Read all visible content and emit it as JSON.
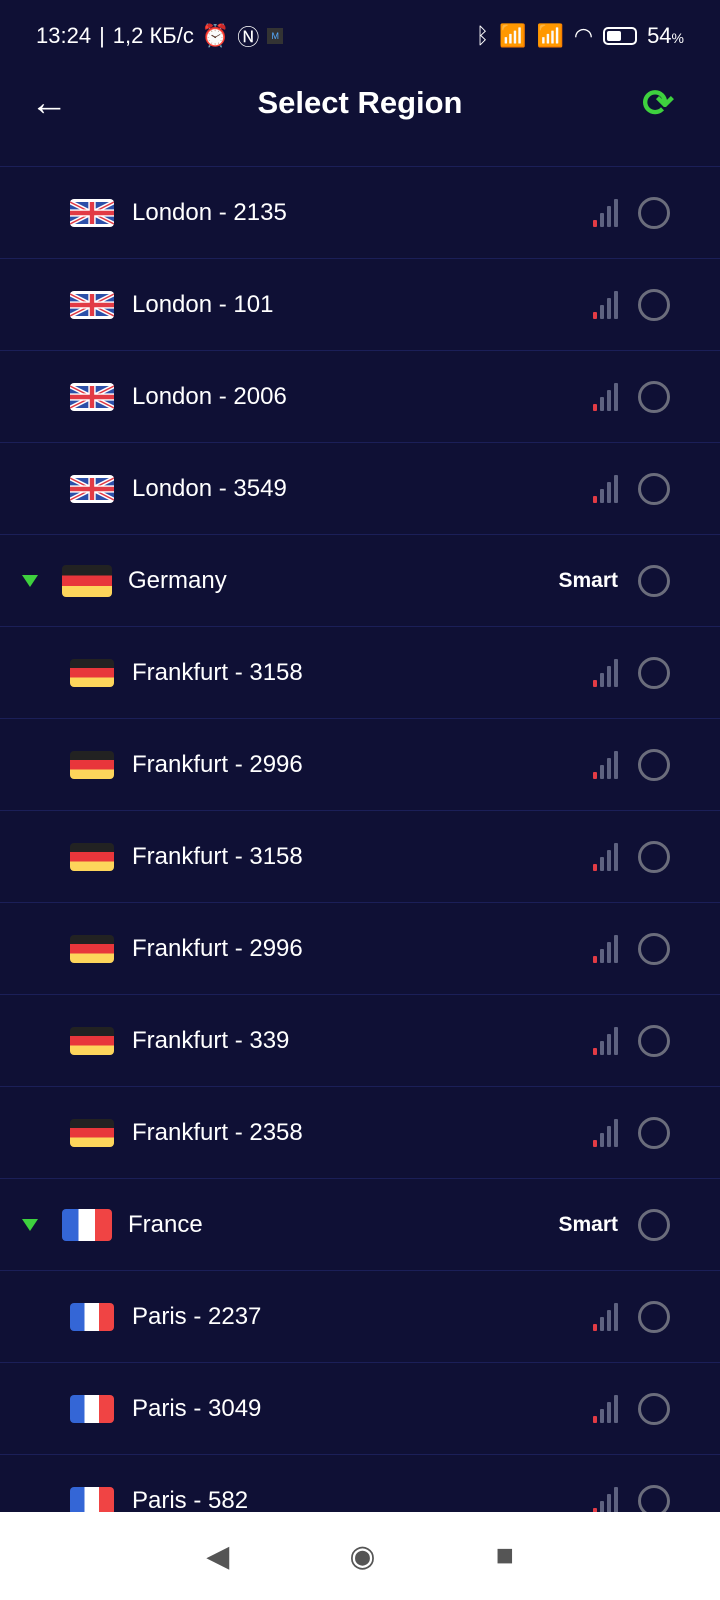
{
  "status": {
    "time": "13:24",
    "speed": "1,2 КБ/с",
    "battery": "54",
    "battery_unit": "%"
  },
  "header": {
    "title": "Select Region",
    "back_icon": "arrow-left-icon",
    "refresh_icon": "refresh-icon",
    "accent": "#3ed13e"
  },
  "smart_label": "Smart",
  "rows": [
    {
      "type": "city",
      "flag": "gb",
      "name": "London - 2135"
    },
    {
      "type": "city",
      "flag": "gb",
      "name": "London - 101"
    },
    {
      "type": "city",
      "flag": "gb",
      "name": "London - 2006"
    },
    {
      "type": "city",
      "flag": "gb",
      "name": "London - 3549"
    },
    {
      "type": "country",
      "flag": "de",
      "name": "Germany"
    },
    {
      "type": "city",
      "flag": "de",
      "name": "Frankfurt - 3158"
    },
    {
      "type": "city",
      "flag": "de",
      "name": "Frankfurt - 2996"
    },
    {
      "type": "city",
      "flag": "de",
      "name": "Frankfurt - 3158"
    },
    {
      "type": "city",
      "flag": "de",
      "name": "Frankfurt - 2996"
    },
    {
      "type": "city",
      "flag": "de",
      "name": "Frankfurt - 339"
    },
    {
      "type": "city",
      "flag": "de",
      "name": "Frankfurt - 2358"
    },
    {
      "type": "country",
      "flag": "fr",
      "name": "France"
    },
    {
      "type": "city",
      "flag": "fr",
      "name": "Paris - 2237"
    },
    {
      "type": "city",
      "flag": "fr",
      "name": "Paris - 3049"
    },
    {
      "type": "city",
      "flag": "fr",
      "name": "Paris - 582"
    }
  ],
  "signal_level": "1 of 4",
  "colors": {
    "background": "#0f1035",
    "signal_active": "#e23b45",
    "signal_inactive": "#5e6280"
  }
}
